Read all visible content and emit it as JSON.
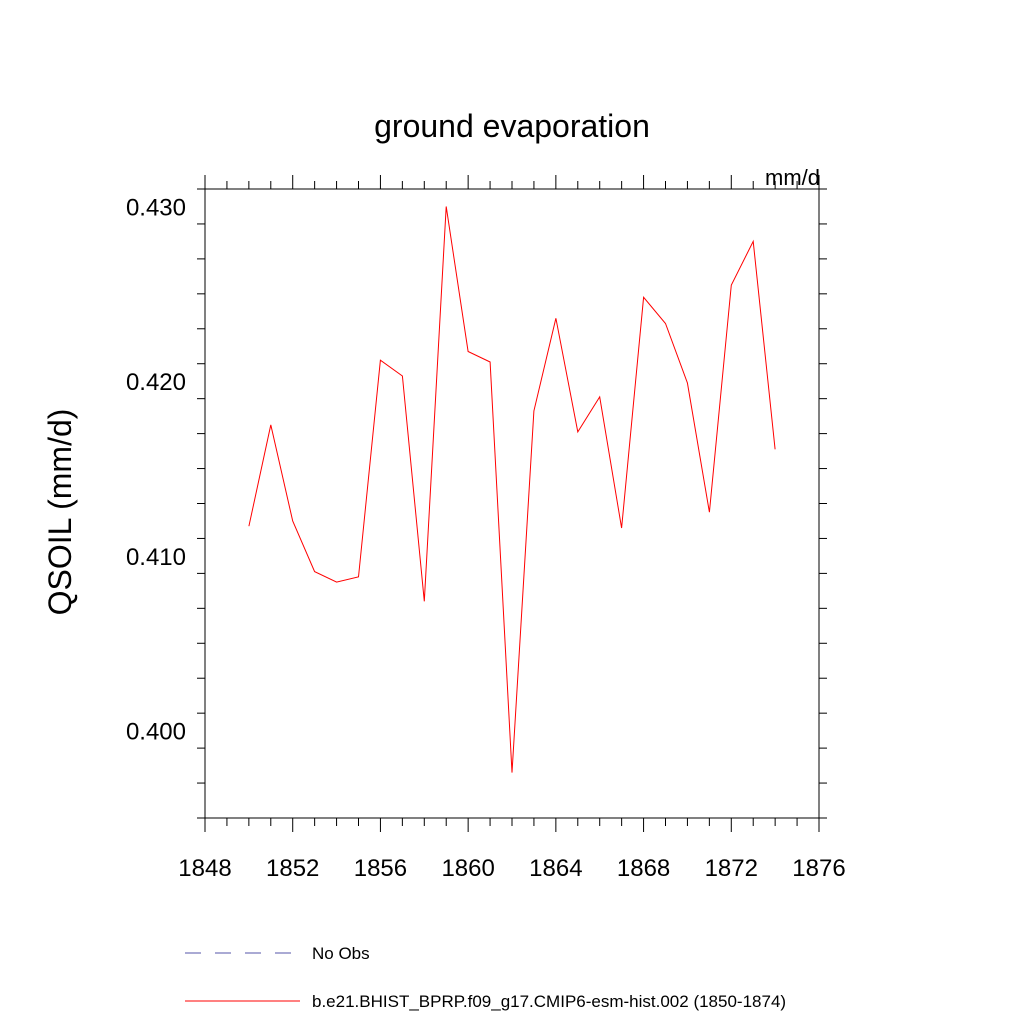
{
  "chart_data": {
    "type": "line",
    "title": "ground evaporation",
    "units_label": "mm/d",
    "ylabel": "QSOIL  (mm/d)",
    "xlabel": "",
    "xlim": [
      1848,
      1876
    ],
    "ylim": [
      0.395,
      0.431
    ],
    "x_ticks": [
      1848,
      1852,
      1856,
      1860,
      1864,
      1868,
      1872,
      1876
    ],
    "x_minor_step": 1,
    "y_ticks": [
      0.4,
      0.41,
      0.42,
      0.43
    ],
    "y_tick_labels": [
      "0.400",
      "0.410",
      "0.420",
      "0.430"
    ],
    "y_minor_step": 0.002,
    "grid": false,
    "series": [
      {
        "name": "b.e21.BHIST_BPRP.f09_g17.CMIP6-esm-hist.002 (1850-1874)",
        "color": "#ff0000",
        "style": "solid",
        "x": [
          1850,
          1851,
          1852,
          1853,
          1854,
          1855,
          1856,
          1857,
          1858,
          1859,
          1860,
          1861,
          1862,
          1863,
          1864,
          1865,
          1866,
          1867,
          1868,
          1869,
          1870,
          1871,
          1872,
          1873,
          1874
        ],
        "values": [
          0.4117,
          0.4175,
          0.412,
          0.4091,
          0.4085,
          0.4088,
          0.4212,
          0.4203,
          0.4074,
          0.43,
          0.4217,
          0.4211,
          0.3976,
          0.4183,
          0.4236,
          0.4171,
          0.4191,
          0.4116,
          0.4248,
          0.4233,
          0.4199,
          0.4125,
          0.4255,
          0.428,
          0.4161
        ]
      }
    ],
    "legend": [
      {
        "label": "No Obs",
        "color": "#5555aa",
        "style": "dashed"
      },
      {
        "label": "b.e21.BHIST_BPRP.f09_g17.CMIP6-esm-hist.002 (1850-1874)",
        "color": "#ff0000",
        "style": "solid"
      }
    ]
  }
}
